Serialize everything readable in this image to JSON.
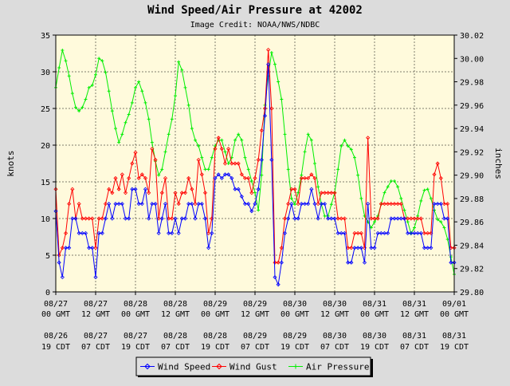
{
  "chart_data": {
    "type": "line",
    "title": "Wind Speed/Air Pressure at 42002",
    "subtitle": "Image Credit: NOAA/NWS/NDBC",
    "ylabel": "knots",
    "y2label": "inches",
    "ylim": [
      0,
      35
    ],
    "y2lim": [
      29.8,
      30.02
    ],
    "xlim": [
      0,
      120
    ],
    "x_unit": "hours since 08/27 00 GMT",
    "grid": true,
    "background": "#fffadc",
    "legend_position": "bottom",
    "yticks": [
      "0",
      "5",
      "10",
      "15",
      "20",
      "25",
      "30",
      "35"
    ],
    "y2ticks": [
      "29.80",
      "29.82",
      "29.84",
      "29.86",
      "29.88",
      "29.90",
      "29.92",
      "29.94",
      "29.96",
      "29.98",
      "30.00",
      "30.02"
    ],
    "xticks_gmt": [
      "08/27",
      "00 GMT",
      "08/27",
      "12 GMT",
      "08/28",
      "00 GMT",
      "08/28",
      "12 GMT",
      "08/29",
      "00 GMT",
      "08/29",
      "12 GMT",
      "08/30",
      "00 GMT",
      "08/30",
      "12 GMT",
      "08/31",
      "00 GMT",
      "08/31",
      "12 GMT",
      "09/01",
      "00 GMT"
    ],
    "xticks_cdt": [
      "08/26",
      "19 CDT",
      "08/27",
      "07 CDT",
      "08/27",
      "19 CDT",
      "08/28",
      "07 CDT",
      "08/28",
      "19 CDT",
      "08/29",
      "07 CDT",
      "08/29",
      "19 CDT",
      "08/30",
      "07 CDT",
      "08/30",
      "19 CDT",
      "08/31",
      "07 CDT",
      "08/31",
      "19 CDT"
    ],
    "series": [
      {
        "name": "Wind Speed",
        "color": "#0000ff",
        "axis": "left",
        "x": [
          0,
          1,
          2,
          3,
          4,
          5,
          6,
          7,
          8,
          9,
          10,
          11,
          12,
          13,
          14,
          15,
          16,
          17,
          18,
          19,
          20,
          21,
          22,
          23,
          24,
          25,
          26,
          27,
          28,
          29,
          30,
          31,
          32,
          33,
          34,
          35,
          36,
          37,
          38,
          39,
          40,
          41,
          42,
          43,
          44,
          45,
          46,
          47,
          48,
          49,
          50,
          51,
          52,
          53,
          54,
          55,
          56,
          57,
          58,
          59,
          60,
          61,
          62,
          63,
          64,
          65,
          66,
          67,
          68,
          69,
          70,
          71,
          72,
          73,
          74,
          75,
          76,
          77,
          78,
          79,
          80,
          81,
          82,
          83,
          84,
          85,
          86,
          87,
          88,
          89,
          90,
          91,
          92,
          93,
          94,
          95,
          96,
          97,
          98,
          99,
          100,
          101,
          102,
          103,
          104,
          105,
          106,
          107,
          108,
          109,
          110,
          111,
          112,
          113,
          114,
          115,
          116,
          117,
          118,
          119,
          120
        ],
        "y": [
          11,
          4,
          2,
          6,
          6,
          10,
          10,
          8,
          8,
          8,
          6,
          6,
          2,
          8,
          8,
          10,
          12,
          10,
          12,
          12,
          12,
          10,
          10,
          14,
          14,
          12,
          12,
          14,
          10,
          12,
          12,
          8,
          10,
          12,
          8,
          8,
          10,
          8,
          10,
          10,
          12,
          12,
          10,
          12,
          12,
          10,
          6,
          8,
          15.5,
          16,
          15.5,
          16,
          16,
          15.5,
          14,
          14,
          13,
          12,
          12,
          11,
          12,
          14,
          18,
          24,
          31,
          18,
          2,
          1,
          4,
          8,
          10,
          12,
          10,
          10,
          12,
          12,
          12,
          14,
          12,
          10,
          12,
          12,
          10,
          10,
          10,
          8,
          8,
          8,
          4,
          4,
          6,
          6,
          6,
          4,
          12,
          6,
          6,
          8,
          8,
          8,
          8,
          10,
          10,
          10,
          10,
          10,
          8,
          8,
          8,
          8,
          8,
          6,
          6,
          6,
          12,
          12,
          12,
          10,
          10,
          4,
          4
        ]
      },
      {
        "name": "Wind Gust",
        "color": "#ff0000",
        "axis": "left",
        "x": [
          0,
          1,
          2,
          3,
          4,
          5,
          6,
          7,
          8,
          9,
          10,
          11,
          12,
          13,
          14,
          15,
          16,
          17,
          18,
          19,
          20,
          21,
          22,
          23,
          24,
          25,
          26,
          27,
          28,
          29,
          30,
          31,
          32,
          33,
          34,
          35,
          36,
          37,
          38,
          39,
          40,
          41,
          42,
          43,
          44,
          45,
          46,
          47,
          48,
          49,
          50,
          51,
          52,
          53,
          54,
          55,
          56,
          57,
          58,
          59,
          60,
          61,
          62,
          63,
          64,
          65,
          66,
          67,
          68,
          69,
          70,
          71,
          72,
          73,
          74,
          75,
          76,
          77,
          78,
          79,
          80,
          81,
          82,
          83,
          84,
          85,
          86,
          87,
          88,
          89,
          90,
          91,
          92,
          93,
          94,
          95,
          96,
          97,
          98,
          99,
          100,
          101,
          102,
          103,
          104,
          105,
          106,
          107,
          108,
          109,
          110,
          111,
          112,
          113,
          114,
          115,
          116,
          117,
          118,
          119,
          120
        ],
        "y": [
          14,
          5,
          6,
          8,
          12,
          14,
          10,
          12,
          10,
          10,
          10,
          10,
          6,
          10,
          10,
          12,
          14,
          13.5,
          15.5,
          14,
          16,
          13.5,
          15.5,
          17.5,
          19,
          15.5,
          16,
          15.5,
          13.5,
          19.5,
          18,
          10,
          13.5,
          15.5,
          10,
          10,
          13.5,
          12,
          13.5,
          13.5,
          15.5,
          14,
          12,
          18,
          16,
          13.5,
          8,
          10,
          19.5,
          21,
          19.5,
          17.5,
          19.5,
          17.5,
          17.5,
          17.5,
          16,
          15.5,
          15.5,
          13.5,
          15.5,
          18,
          22,
          25,
          33,
          25,
          4,
          4,
          6,
          10,
          12,
          14,
          14,
          12,
          15.5,
          15.5,
          15.5,
          16,
          15.5,
          12,
          13.5,
          13.5,
          13.5,
          13.5,
          13.5,
          10,
          10,
          10,
          6,
          6,
          8,
          8,
          8,
          6,
          21,
          10,
          10,
          10,
          12,
          12,
          12,
          12,
          12,
          12,
          12,
          10,
          10,
          10,
          10,
          10,
          10,
          8,
          8,
          8,
          16,
          17.5,
          15.5,
          12,
          12,
          6,
          6
        ]
      },
      {
        "name": "Air Pressure",
        "color": "#00ee00",
        "axis": "right",
        "x": [
          0,
          1,
          2,
          3,
          4,
          5,
          6,
          7,
          8,
          9,
          10,
          11,
          12,
          13,
          14,
          15,
          16,
          17,
          18,
          19,
          20,
          21,
          22,
          23,
          24,
          25,
          26,
          27,
          28,
          29,
          30,
          31,
          32,
          33,
          34,
          35,
          36,
          37,
          38,
          39,
          40,
          41,
          42,
          43,
          44,
          45,
          46,
          47,
          48,
          49,
          50,
          51,
          52,
          53,
          54,
          55,
          56,
          57,
          58,
          59,
          60,
          61,
          62,
          63,
          64,
          65,
          66,
          67,
          68,
          69,
          70,
          71,
          72,
          73,
          74,
          75,
          76,
          77,
          78,
          79,
          80,
          81,
          82,
          83,
          84,
          85,
          86,
          87,
          88,
          89,
          90,
          91,
          92,
          93,
          94,
          95,
          96,
          97,
          98,
          99,
          100,
          101,
          102,
          103,
          104,
          105,
          106,
          107,
          108,
          109,
          110,
          111,
          112,
          113,
          114,
          115,
          116,
          117,
          118,
          119,
          120
        ],
        "y": [
          29.975,
          29.992,
          30.007,
          29.998,
          29.985,
          29.97,
          29.958,
          29.955,
          29.958,
          29.965,
          29.975,
          29.977,
          29.986,
          30.0,
          29.998,
          29.988,
          29.972,
          29.955,
          29.94,
          29.928,
          29.935,
          29.945,
          29.952,
          29.962,
          29.975,
          29.98,
          29.972,
          29.962,
          29.948,
          29.928,
          29.912,
          29.9,
          29.905,
          29.92,
          29.935,
          29.948,
          29.968,
          29.997,
          29.99,
          29.975,
          29.96,
          29.94,
          29.93,
          29.925,
          29.915,
          29.905,
          29.905,
          29.915,
          29.925,
          29.93,
          29.93,
          29.92,
          29.91,
          29.915,
          29.93,
          29.935,
          29.93,
          29.915,
          29.905,
          29.895,
          29.885,
          29.87,
          29.9,
          29.96,
          29.985,
          30.005,
          29.995,
          29.98,
          29.965,
          29.935,
          29.905,
          29.88,
          29.875,
          29.885,
          29.9,
          29.92,
          29.935,
          29.93,
          29.91,
          29.89,
          29.875,
          29.865,
          29.865,
          29.875,
          29.885,
          29.905,
          29.925,
          29.93,
          29.925,
          29.922,
          29.915,
          29.9,
          29.88,
          29.865,
          29.86,
          29.855,
          29.86,
          29.865,
          29.875,
          29.885,
          29.89,
          29.895,
          29.895,
          29.89,
          29.88,
          29.87,
          29.86,
          29.85,
          29.855,
          29.865,
          29.878,
          29.887,
          29.888,
          29.88,
          29.87,
          29.862,
          29.86,
          29.855,
          29.845,
          29.83,
          29.815
        ]
      }
    ]
  }
}
